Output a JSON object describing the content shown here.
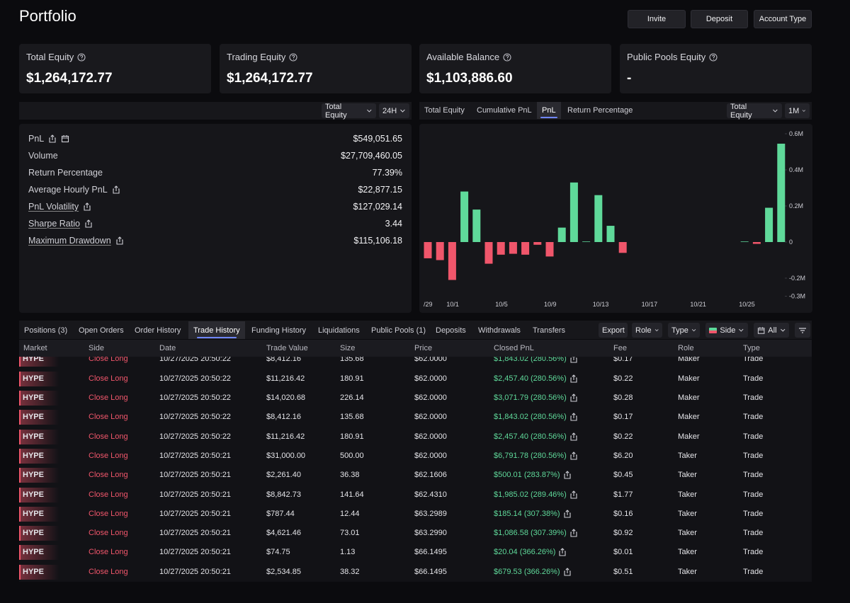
{
  "header": {
    "title": "Portfolio",
    "buttons": [
      "Invite",
      "Deposit",
      "Account Type"
    ]
  },
  "cards": [
    {
      "label": "Total Equity",
      "value": "$1,264,172.77"
    },
    {
      "label": "Trading Equity",
      "value": "$1,264,172.77"
    },
    {
      "label": "Available Balance",
      "value": "$1,103,886.60"
    },
    {
      "label": "Public Pools Equity",
      "value": "-"
    }
  ],
  "stats_panel": {
    "selectors": [
      "Total Equity",
      "24H"
    ],
    "rows": [
      {
        "label": "PnL",
        "value": "$549,051.65"
      },
      {
        "label": "Volume",
        "value": "$27,709,460.05"
      },
      {
        "label": "Return Percentage",
        "value": "77.39%"
      },
      {
        "label": "Average Hourly PnL",
        "value": "$22,877.15"
      },
      {
        "label": "PnL Volatility",
        "value": "$127,029.14"
      },
      {
        "label": "Sharpe Ratio",
        "value": "3.44"
      },
      {
        "label": "Maximum Drawdown",
        "value": "$115,106.18"
      }
    ]
  },
  "chart_panel": {
    "tabs": [
      "Total Equity",
      "Cumulative PnL",
      "PnL",
      "Return Percentage"
    ],
    "active_tab": 2,
    "selectors": [
      "Total Equity",
      "1M"
    ]
  },
  "chart_data": {
    "type": "bar",
    "categories": [
      "/29",
      null,
      "10/1",
      null,
      null,
      null,
      "10/5",
      null,
      null,
      null,
      "10/9",
      null,
      null,
      null,
      "10/13",
      null,
      null,
      null,
      "10/17",
      null,
      null,
      null,
      "10/21",
      null,
      null,
      null,
      "10/25",
      null,
      null,
      null
    ],
    "values": [
      -90000,
      -100000,
      -210000,
      280000,
      180000,
      -120000,
      -70000,
      -65000,
      -70000,
      -15000,
      -80000,
      80000,
      330000,
      3000,
      260000,
      90000,
      -60000,
      0,
      0,
      0,
      0,
      0,
      0,
      0,
      0,
      0,
      3000,
      -10000,
      190000,
      545000
    ],
    "positive_color": "#5fd99a",
    "negative_color": "#f0566b",
    "ylim": [
      -300000,
      600000
    ],
    "yticks": [
      {
        "value": -300000,
        "label": "-0.3M"
      },
      {
        "value": -200000,
        "label": "-0.2M"
      },
      0,
      {
        "value": 200000,
        "label": "0.2M"
      },
      {
        "value": 400000,
        "label": "0.4M"
      },
      {
        "value": 600000,
        "label": "0.6M"
      }
    ],
    "grid": false
  },
  "history": {
    "tabs": [
      "Positions (3)",
      "Open Orders",
      "Order History",
      "Trade History",
      "Funding History",
      "Liquidations",
      "Public Pools (1)",
      "Deposits",
      "Withdrawals",
      "Transfers"
    ],
    "active_tab": 3,
    "controls": [
      "Export",
      "Role",
      "Type",
      "Side",
      "All"
    ],
    "columns": [
      "Market",
      "Side",
      "Date",
      "Trade Value",
      "Size",
      "Price",
      "Closed PnL",
      "Fee",
      "Role",
      "Type"
    ],
    "rows": [
      [
        "HYPE",
        "Close Long",
        "10/27/2025 20:50:22",
        "$8,412.16",
        "135.68",
        "$62.0000",
        "$1,843.02 (280.56%)",
        "$0.17",
        "Maker",
        "Trade"
      ],
      [
        "HYPE",
        "Close Long",
        "10/27/2025 20:50:22",
        "$11,216.42",
        "180.91",
        "$62.0000",
        "$2,457.40 (280.56%)",
        "$0.22",
        "Maker",
        "Trade"
      ],
      [
        "HYPE",
        "Close Long",
        "10/27/2025 20:50:22",
        "$14,020.68",
        "226.14",
        "$62.0000",
        "$3,071.79 (280.56%)",
        "$0.28",
        "Maker",
        "Trade"
      ],
      [
        "HYPE",
        "Close Long",
        "10/27/2025 20:50:22",
        "$8,412.16",
        "135.68",
        "$62.0000",
        "$1,843.02 (280.56%)",
        "$0.17",
        "Maker",
        "Trade"
      ],
      [
        "HYPE",
        "Close Long",
        "10/27/2025 20:50:22",
        "$11,216.42",
        "180.91",
        "$62.0000",
        "$2,457.40 (280.56%)",
        "$0.22",
        "Maker",
        "Trade"
      ],
      [
        "HYPE",
        "Close Long",
        "10/27/2025 20:50:21",
        "$31,000.00",
        "500.00",
        "$62.0000",
        "$6,791.78 (280.56%)",
        "$6.20",
        "Taker",
        "Trade"
      ],
      [
        "HYPE",
        "Close Long",
        "10/27/2025 20:50:21",
        "$2,261.40",
        "36.38",
        "$62.1606",
        "$500.01 (283.87%)",
        "$0.45",
        "Taker",
        "Trade"
      ],
      [
        "HYPE",
        "Close Long",
        "10/27/2025 20:50:21",
        "$8,842.73",
        "141.64",
        "$62.4310",
        "$1,985.02 (289.46%)",
        "$1.77",
        "Taker",
        "Trade"
      ],
      [
        "HYPE",
        "Close Long",
        "10/27/2025 20:50:21",
        "$787.44",
        "12.44",
        "$63.2989",
        "$185.14 (307.38%)",
        "$0.16",
        "Taker",
        "Trade"
      ],
      [
        "HYPE",
        "Close Long",
        "10/27/2025 20:50:21",
        "$4,621.46",
        "73.01",
        "$63.2990",
        "$1,086.58 (307.39%)",
        "$0.92",
        "Taker",
        "Trade"
      ],
      [
        "HYPE",
        "Close Long",
        "10/27/2025 20:50:21",
        "$74.75",
        "1.13",
        "$66.1495",
        "$20.04 (366.26%)",
        "$0.01",
        "Taker",
        "Trade"
      ],
      [
        "HYPE",
        "Close Long",
        "10/27/2025 20:50:21",
        "$2,534.85",
        "38.32",
        "$66.1495",
        "$679.53 (366.26%)",
        "$0.51",
        "Taker",
        "Trade"
      ]
    ]
  }
}
